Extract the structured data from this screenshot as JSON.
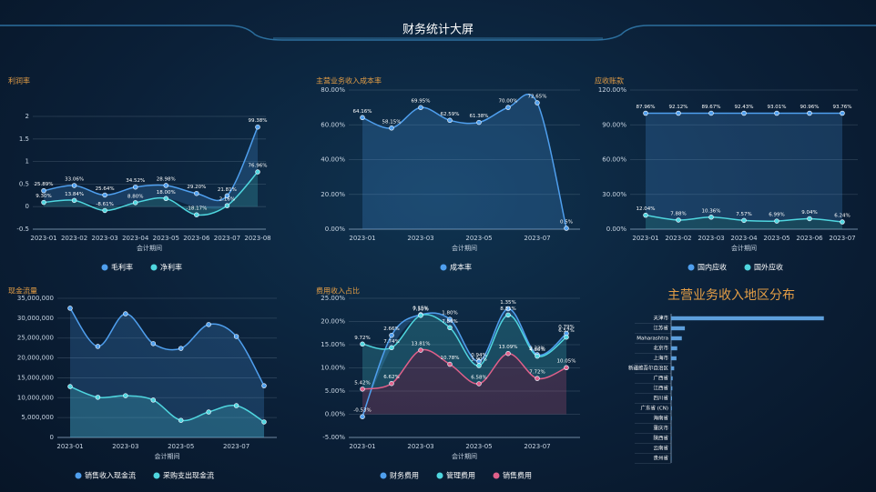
{
  "header": {
    "title": "财务统计大屏"
  },
  "chart_data": [
    {
      "type": "line",
      "title": "利润率",
      "x_label": "会计期间",
      "area": true,
      "stacked": true,
      "categories": [
        "2023-01",
        "2023-02",
        "2023-03",
        "2023-04",
        "2023-05",
        "2023-06",
        "2023-07",
        "2023-08"
      ],
      "ylim": [
        -0.5,
        2
      ],
      "yticks": [
        -0.5,
        0,
        0.5,
        1,
        1.5,
        2
      ],
      "grid": true,
      "series": [
        {
          "name": "毛利率",
          "color": "#4f9fee",
          "values": [
            0.2589,
            0.3306,
            0.2564,
            0.3452,
            0.2898,
            0.292,
            0.2181,
            0.9938
          ],
          "value_labels": [
            "25.89%",
            "33.06%",
            "25.64%",
            "34.52%",
            "28.98%",
            "29.20%",
            "21.81%",
            "99.38%"
          ]
        },
        {
          "name": "净利率",
          "color": "#4fd6df",
          "values": [
            0.093,
            0.1384,
            -0.0861,
            0.088,
            0.18,
            -0.1817,
            0.0216,
            0.7696
          ],
          "value_labels": [
            "9.30%",
            "13.84%",
            "-8.61%",
            "8.80%",
            "18.00%",
            "-18.17%",
            "2.16%",
            "76.96%"
          ]
        }
      ]
    },
    {
      "type": "line",
      "title": "主营业务收入成本率",
      "x_label": "会计期间",
      "area": true,
      "categories": [
        "2023-01",
        null,
        "2023-03",
        null,
        "2023-05",
        null,
        "2023-07",
        null
      ],
      "ylim": [
        0,
        80
      ],
      "yticks": [
        {
          "value": 0,
          "label": "0.00%"
        },
        {
          "value": 20,
          "label": "20.00%"
        },
        {
          "value": 40,
          "label": "40.00%"
        },
        {
          "value": 60,
          "label": "60.00%"
        },
        {
          "value": 80,
          "label": "80.00%"
        }
      ],
      "grid": true,
      "series": [
        {
          "name": "成本率",
          "color": "#4f9fee",
          "values": [
            64.16,
            58.15,
            69.95,
            62.59,
            61.38,
            70.0,
            72.65,
            0.5
          ],
          "value_labels": [
            "64.16%",
            "58.15%",
            "69.95%",
            "62.59%",
            "61.38%",
            "70.00%",
            "72.65%",
            "0.5%"
          ]
        }
      ]
    },
    {
      "type": "line",
      "title": "应收账款",
      "x_label": "会计期间",
      "area": true,
      "stacked": true,
      "categories": [
        "2023-01",
        "2023-02",
        "2023-03",
        "2023-04",
        "2023-05",
        "2023-06",
        "2023-07"
      ],
      "ylim": [
        0,
        120
      ],
      "yticks": [
        {
          "value": 0,
          "label": "0.00%"
        },
        {
          "value": 30,
          "label": "30.00%"
        },
        {
          "value": 60,
          "label": "60.00%"
        },
        {
          "value": 90,
          "label": "90.00%"
        },
        {
          "value": 120,
          "label": "120.00%"
        }
      ],
      "grid": true,
      "series": [
        {
          "name": "国内应收",
          "color": "#4f9fee",
          "values": [
            87.96,
            92.12,
            89.67,
            92.43,
            93.01,
            90.96,
            93.76
          ],
          "value_labels": [
            "87.96%",
            "92.12%",
            "89.67%",
            "92.43%",
            "93.01%",
            "90.96%",
            "93.76%"
          ]
        },
        {
          "name": "国外应收",
          "color": "#4fd6df",
          "values": [
            12.04,
            7.88,
            10.36,
            7.57,
            6.99,
            9.04,
            6.24
          ],
          "value_labels": [
            "12.04%",
            "7.88%",
            "10.36%",
            "7.57%",
            "6.99%",
            "9.04%",
            "6.24%"
          ]
        }
      ]
    },
    {
      "type": "line",
      "title": "现金流量",
      "x_label": "会计期间",
      "area": true,
      "categories": [
        "2023-01",
        null,
        "2023-03",
        null,
        "2023-05",
        null,
        "2023-07",
        null
      ],
      "ylim": [
        0,
        35000000
      ],
      "yticks": [
        0,
        {
          "value": 5000000,
          "label": "5,000,000"
        },
        {
          "value": 10000000,
          "label": "10,000,000"
        },
        {
          "value": 15000000,
          "label": "15,000,000"
        },
        {
          "value": 20000000,
          "label": "20,000,000"
        },
        {
          "value": 25000000,
          "label": "25,000,000"
        },
        {
          "value": 30000000,
          "label": "30,000,000"
        },
        {
          "value": 35000000,
          "label": "35,000,000"
        }
      ],
      "grid": true,
      "series": [
        {
          "name": "销售收入现金流",
          "color": "#4f9fee",
          "values": [
            32500000,
            22900000,
            31100000,
            23600000,
            22400000,
            28400000,
            25400000,
            13000000
          ]
        },
        {
          "name": "采购支出现金流",
          "color": "#4fd6df",
          "values": [
            12800000,
            10100000,
            10500000,
            9400000,
            4300000,
            6400000,
            8000000,
            3900000
          ]
        }
      ]
    },
    {
      "type": "line",
      "title": "费用收入占比",
      "x_label": "会计期间",
      "area": true,
      "stacked": true,
      "categories": [
        "2023-01",
        null,
        "2023-03",
        null,
        "2023-05",
        null,
        "2023-07",
        null
      ],
      "ylim": [
        -5,
        25
      ],
      "yticks": [
        {
          "value": -5,
          "label": "-5.00%"
        },
        {
          "value": 0,
          "label": "0.00%"
        },
        {
          "value": 5,
          "label": "5.00%"
        },
        {
          "value": 10,
          "label": "10.00%"
        },
        {
          "value": 15,
          "label": "15.00%"
        },
        {
          "value": 20,
          "label": "20.00%"
        },
        {
          "value": 25,
          "label": "25.00%"
        }
      ],
      "grid": true,
      "series": [
        {
          "name": "财务费用",
          "color": "#4f9fee",
          "values": [
            -0.53,
            2.66,
            0.15,
            1.8,
            0.94,
            1.35,
            0.32,
            0.79
          ],
          "value_labels": [
            "-0.53%",
            "2.66%",
            "0.15%",
            "1.80%",
            "0.94%",
            "1.35%",
            "0.32%",
            "0.79%"
          ]
        },
        {
          "name": "管理费用",
          "color": "#4fd6df",
          "values": [
            9.72,
            7.74,
            7.5,
            7.89,
            3.9,
            8.31,
            4.8,
            6.57
          ],
          "value_labels": [
            "9.72%",
            "7.74%",
            "7.50%",
            "7.89%",
            "3.90%",
            "8.31%",
            "4.80%",
            "6.57%"
          ]
        },
        {
          "name": "销售费用",
          "color": "#e0608a",
          "values": [
            5.42,
            6.62,
            13.81,
            10.78,
            6.58,
            13.09,
            7.72,
            10.05
          ],
          "value_labels": [
            "5.42%",
            "6.62%",
            "13.81%",
            "10.78%",
            "6.58%",
            "13.09%",
            "7.72%",
            "10.05%"
          ]
        }
      ]
    },
    {
      "type": "bar",
      "orientation": "horizontal",
      "title": "主营业务收入地区分布",
      "color": "#5d9fdc",
      "categories": [
        "天津市",
        "江苏省",
        "Maharashtra",
        "北京市",
        "上海市",
        "新疆维吾尔自治区",
        "广西省",
        "江西省",
        "四川省",
        "广东省 (CN)",
        "海南省",
        "重庆市",
        "陕西省",
        "云南省",
        "贵州省"
      ],
      "values": [
        100,
        9,
        7,
        4,
        3.5,
        2,
        1,
        0.8,
        0.6,
        0.5,
        0.4,
        0.3,
        0.3,
        0.2,
        0.2
      ],
      "xlim": [
        0,
        124
      ]
    }
  ]
}
